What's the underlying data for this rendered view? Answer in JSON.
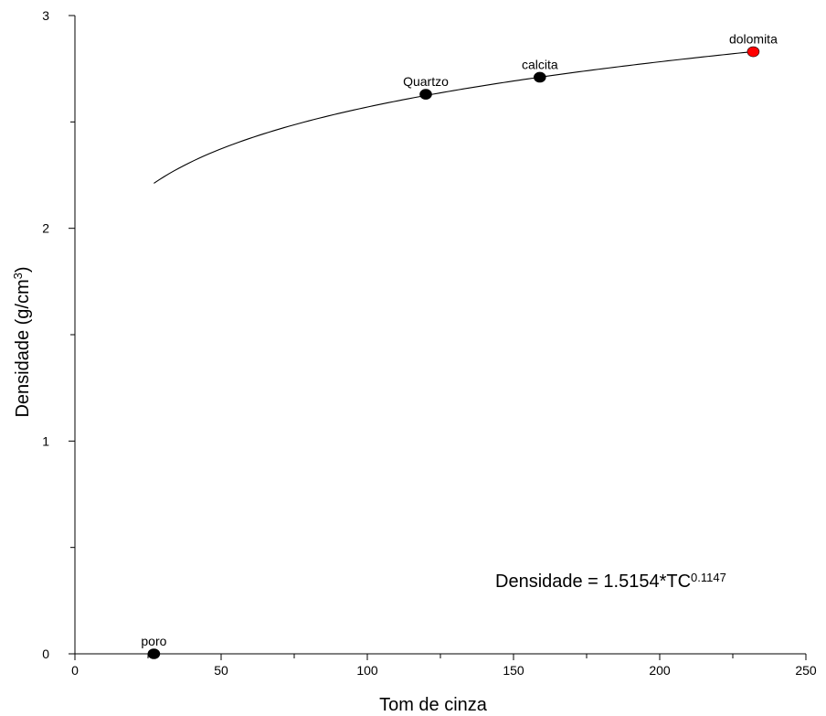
{
  "chart_data": {
    "type": "scatter",
    "xlabel": "Tom de cinza",
    "ylabel": "Densidade (g/cm3)",
    "ylabel_main": "Densidade (g/cm",
    "ylabel_sup": "3",
    "ylabel_close": ")",
    "xlim": [
      0,
      250
    ],
    "ylim": [
      0,
      3
    ],
    "x_major_ticks": [
      0,
      50,
      100,
      150,
      200,
      250
    ],
    "x_major_tick_labels": [
      "0",
      "50",
      "100",
      "150",
      "200",
      "250"
    ],
    "x_minor_ticks": [
      25,
      75,
      125,
      175,
      225
    ],
    "y_major_ticks": [
      0,
      1,
      2,
      3
    ],
    "y_major_tick_labels": [
      "0",
      "1",
      "2",
      "3"
    ],
    "y_minor_ticks": [
      0.5,
      1.5,
      2.5
    ],
    "grid": false,
    "points": [
      {
        "label": "poro",
        "x": 27,
        "y": 0.0,
        "color": "#000000"
      },
      {
        "label": "Quartzo",
        "x": 120,
        "y": 2.63,
        "color": "#000000"
      },
      {
        "label": "calcita",
        "x": 159,
        "y": 2.71,
        "color": "#000000"
      },
      {
        "label": "dolomita",
        "x": 232,
        "y": 2.83,
        "color": "#ff0000"
      }
    ],
    "fit": {
      "equation_main": "Densidade = 1.5154*TC",
      "equation_exponent": "0.1147",
      "coefficient": 1.5154,
      "exponent": 0.1147,
      "x_range": [
        27,
        232
      ],
      "color": "#000000"
    }
  }
}
